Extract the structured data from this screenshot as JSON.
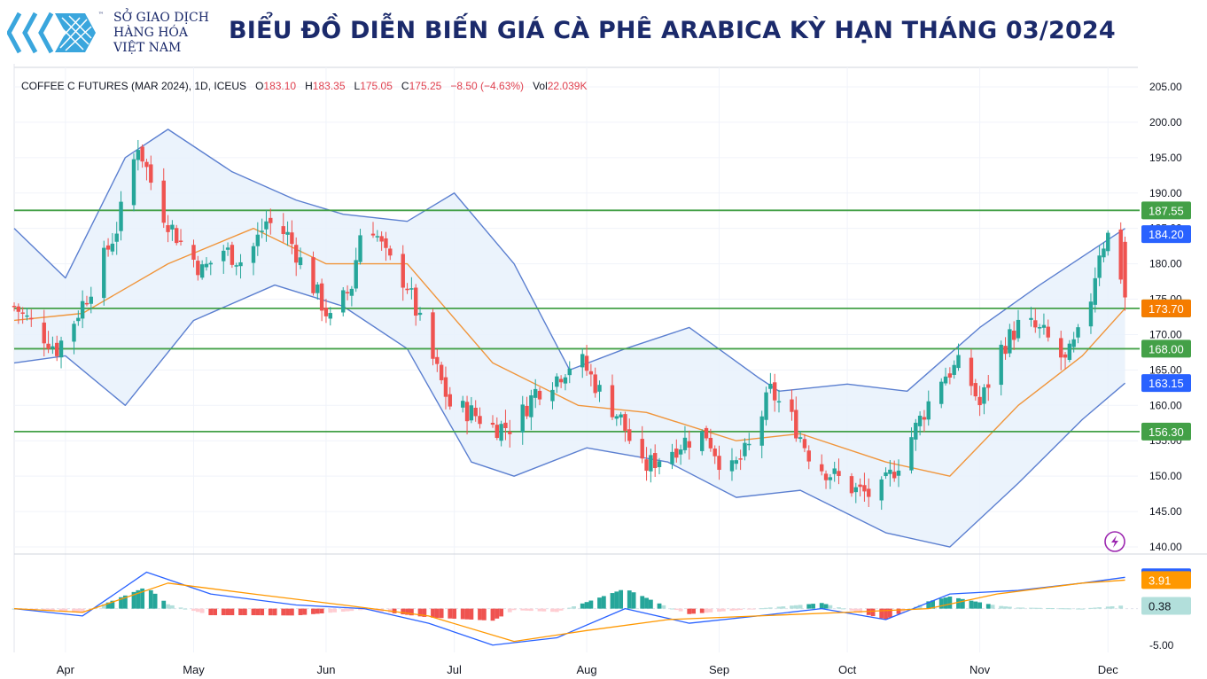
{
  "header": {
    "brand_lines": [
      "SỞ GIAO DỊCH",
      "HÀNG HÓA",
      "VIỆT NAM"
    ],
    "brand_tm": "™",
    "title": "BIỂU ĐỒ DIỄN BIẾN GIÁ CÀ PHÊ ARABICA KỲ HẠN THÁNG 03/2024"
  },
  "legend": {
    "symbol": "COFFEE C FUTURES (MAR 2024), 1D, ICEUS",
    "o_label": "O",
    "o_value": "183.10",
    "h_label": "H",
    "h_value": "183.35",
    "l_label": "L",
    "l_value": "175.05",
    "c_label": "C",
    "c_value": "175.25",
    "change": "−8.50 (−4.63%)",
    "vol_label": "Vol",
    "vol_value": "22.039K"
  },
  "colors": {
    "up": "#26a69a",
    "down": "#ef5350",
    "band_line": "#5b7fd0",
    "band_fill": "#e8f1fb",
    "ma": "#f0953b",
    "level": "#43a047",
    "macd": "#2962ff",
    "signal": "#ff9800"
  },
  "chart_data": [
    {
      "type": "candlestick",
      "name": "COFFEE C FUTURES (MAR 2024), 1D, ICEUS",
      "x_labels": [
        "Apr",
        "May",
        "Jun",
        "Jul",
        "Aug",
        "Sep",
        "Oct",
        "Nov",
        "Dec"
      ],
      "y_ticks": [
        "140.00",
        "145.00",
        "150.00",
        "155.00",
        "160.00",
        "165.00",
        "170.00",
        "175.00",
        "180.00",
        "185.00",
        "190.00",
        "195.00",
        "200.00",
        "205.00"
      ],
      "ylim": [
        139,
        207
      ],
      "last_ohlc": {
        "open": 183.1,
        "high": 183.35,
        "low": 175.05,
        "close": 175.25
      },
      "close_path": [
        {
          "d": "2023-03-20",
          "c": 174
        },
        {
          "d": "2023-03-25",
          "c": 171
        },
        {
          "d": "2023-03-30",
          "c": 168
        },
        {
          "d": "2023-04-03",
          "c": 172
        },
        {
          "d": "2023-04-08",
          "c": 178
        },
        {
          "d": "2023-04-13",
          "c": 185
        },
        {
          "d": "2023-04-18",
          "c": 197
        },
        {
          "d": "2023-04-23",
          "c": 188
        },
        {
          "d": "2023-04-28",
          "c": 183
        },
        {
          "d": "2023-05-03",
          "c": 179
        },
        {
          "d": "2023-05-08",
          "c": 182
        },
        {
          "d": "2023-05-13",
          "c": 180
        },
        {
          "d": "2023-05-18",
          "c": 186
        },
        {
          "d": "2023-05-23",
          "c": 184
        },
        {
          "d": "2023-05-28",
          "c": 178
        },
        {
          "d": "2023-06-02",
          "c": 172
        },
        {
          "d": "2023-06-07",
          "c": 177
        },
        {
          "d": "2023-06-10",
          "c": 188
        },
        {
          "d": "2023-06-15",
          "c": 181
        },
        {
          "d": "2023-06-20",
          "c": 177
        },
        {
          "d": "2023-06-25",
          "c": 168
        },
        {
          "d": "2023-06-30",
          "c": 160
        },
        {
          "d": "2023-07-05",
          "c": 159
        },
        {
          "d": "2023-07-10",
          "c": 157
        },
        {
          "d": "2023-07-15",
          "c": 157
        },
        {
          "d": "2023-07-20",
          "c": 162
        },
        {
          "d": "2023-07-25",
          "c": 164
        },
        {
          "d": "2023-07-30",
          "c": 167
        },
        {
          "d": "2023-08-04",
          "c": 162
        },
        {
          "d": "2023-08-09",
          "c": 158
        },
        {
          "d": "2023-08-14",
          "c": 151
        },
        {
          "d": "2023-08-19",
          "c": 153
        },
        {
          "d": "2023-08-24",
          "c": 155
        },
        {
          "d": "2023-08-29",
          "c": 156
        },
        {
          "d": "2023-09-03",
          "c": 150
        },
        {
          "d": "2023-09-08",
          "c": 154
        },
        {
          "d": "2023-09-13",
          "c": 162
        },
        {
          "d": "2023-09-18",
          "c": 158
        },
        {
          "d": "2023-09-23",
          "c": 152
        },
        {
          "d": "2023-09-28",
          "c": 150
        },
        {
          "d": "2023-10-03",
          "c": 148
        },
        {
          "d": "2023-10-08",
          "c": 147
        },
        {
          "d": "2023-10-13",
          "c": 152
        },
        {
          "d": "2023-10-18",
          "c": 158
        },
        {
          "d": "2023-10-23",
          "c": 164
        },
        {
          "d": "2023-10-28",
          "c": 166
        },
        {
          "d": "2023-11-01",
          "c": 160
        },
        {
          "d": "2023-11-06",
          "c": 168
        },
        {
          "d": "2023-11-11",
          "c": 172
        },
        {
          "d": "2023-11-16",
          "c": 170
        },
        {
          "d": "2023-11-21",
          "c": 166
        },
        {
          "d": "2023-11-26",
          "c": 172
        },
        {
          "d": "2023-11-29",
          "c": 182
        },
        {
          "d": "2023-12-02",
          "c": 185
        },
        {
          "d": "2023-12-05",
          "c": 175.25
        }
      ],
      "horizontal_levels": [
        {
          "value": 187.55,
          "label": "187.55"
        },
        {
          "value": 173.7,
          "label": "173.70"
        },
        {
          "value": 168.0,
          "label": "168.00"
        },
        {
          "value": 156.3,
          "label": "156.30"
        }
      ],
      "price_tags": [
        {
          "value": 184.2,
          "label": "184.20",
          "color": "#2962ff"
        },
        {
          "value": 173.7,
          "label": "173.70",
          "color": "#f57c00"
        },
        {
          "value": 163.15,
          "label": "163.15",
          "color": "#2962ff"
        }
      ],
      "bollinger_upper": [
        {
          "d": "2023-03-20",
          "v": 185
        },
        {
          "d": "2023-04-01",
          "v": 178
        },
        {
          "d": "2023-04-15",
          "v": 195
        },
        {
          "d": "2023-04-25",
          "v": 199
        },
        {
          "d": "2023-05-10",
          "v": 193
        },
        {
          "d": "2023-05-25",
          "v": 189
        },
        {
          "d": "2023-06-05",
          "v": 187
        },
        {
          "d": "2023-06-20",
          "v": 186
        },
        {
          "d": "2023-07-01",
          "v": 190
        },
        {
          "d": "2023-07-15",
          "v": 180
        },
        {
          "d": "2023-07-28",
          "v": 165
        },
        {
          "d": "2023-08-10",
          "v": 168
        },
        {
          "d": "2023-08-25",
          "v": 171
        },
        {
          "d": "2023-09-10",
          "v": 164
        },
        {
          "d": "2023-09-15",
          "v": 162
        },
        {
          "d": "2023-10-01",
          "v": 163
        },
        {
          "d": "2023-10-15",
          "v": 162
        },
        {
          "d": "2023-11-01",
          "v": 171
        },
        {
          "d": "2023-11-15",
          "v": 177
        },
        {
          "d": "2023-12-05",
          "v": 185
        }
      ],
      "bollinger_lower": [
        {
          "d": "2023-03-20",
          "v": 166
        },
        {
          "d": "2023-04-01",
          "v": 167
        },
        {
          "d": "2023-04-15",
          "v": 160
        },
        {
          "d": "2023-05-01",
          "v": 172
        },
        {
          "d": "2023-05-20",
          "v": 177
        },
        {
          "d": "2023-06-05",
          "v": 174
        },
        {
          "d": "2023-06-20",
          "v": 168
        },
        {
          "d": "2023-07-05",
          "v": 152
        },
        {
          "d": "2023-07-15",
          "v": 150
        },
        {
          "d": "2023-08-01",
          "v": 154
        },
        {
          "d": "2023-08-20",
          "v": 152
        },
        {
          "d": "2023-09-05",
          "v": 147
        },
        {
          "d": "2023-09-20",
          "v": 148
        },
        {
          "d": "2023-10-10",
          "v": 142
        },
        {
          "d": "2023-10-25",
          "v": 140
        },
        {
          "d": "2023-11-10",
          "v": 149
        },
        {
          "d": "2023-11-25",
          "v": 158
        },
        {
          "d": "2023-12-05",
          "v": 163.15
        }
      ],
      "moving_average": [
        {
          "d": "2023-03-20",
          "v": 172
        },
        {
          "d": "2023-04-05",
          "v": 173
        },
        {
          "d": "2023-04-25",
          "v": 180
        },
        {
          "d": "2023-05-15",
          "v": 185
        },
        {
          "d": "2023-06-01",
          "v": 180
        },
        {
          "d": "2023-06-20",
          "v": 180
        },
        {
          "d": "2023-07-10",
          "v": 166
        },
        {
          "d": "2023-07-30",
          "v": 160
        },
        {
          "d": "2023-08-15",
          "v": 159
        },
        {
          "d": "2023-09-05",
          "v": 155
        },
        {
          "d": "2023-09-20",
          "v": 156
        },
        {
          "d": "2023-10-10",
          "v": 152
        },
        {
          "d": "2023-10-25",
          "v": 150
        },
        {
          "d": "2023-11-10",
          "v": 160
        },
        {
          "d": "2023-11-25",
          "v": 167
        },
        {
          "d": "2023-12-05",
          "v": 173.7
        }
      ]
    },
    {
      "type": "macd",
      "y_ticks": [
        "-5.00"
      ],
      "ylim": [
        -6,
        7
      ],
      "value_tags": [
        {
          "value": 4.29,
          "label": "4.29",
          "color": "#2962ff"
        },
        {
          "value": 3.91,
          "label": "3.91",
          "color": "#ff9800"
        },
        {
          "value": 0.38,
          "label": "0.38",
          "color": "#b2dfdb"
        }
      ],
      "macd_line": [
        {
          "d": "2023-03-20",
          "v": 0
        },
        {
          "d": "2023-04-05",
          "v": -1
        },
        {
          "d": "2023-04-20",
          "v": 5
        },
        {
          "d": "2023-05-05",
          "v": 2
        },
        {
          "d": "2023-05-25",
          "v": 0.5
        },
        {
          "d": "2023-06-10",
          "v": 0
        },
        {
          "d": "2023-06-25",
          "v": -2
        },
        {
          "d": "2023-07-10",
          "v": -5
        },
        {
          "d": "2023-07-25",
          "v": -4
        },
        {
          "d": "2023-08-10",
          "v": 0
        },
        {
          "d": "2023-08-25",
          "v": -2
        },
        {
          "d": "2023-09-10",
          "v": -1
        },
        {
          "d": "2023-09-25",
          "v": 0
        },
        {
          "d": "2023-10-10",
          "v": -1.5
        },
        {
          "d": "2023-10-25",
          "v": 2
        },
        {
          "d": "2023-11-10",
          "v": 2.5
        },
        {
          "d": "2023-11-25",
          "v": 3.5
        },
        {
          "d": "2023-12-05",
          "v": 4.29
        }
      ],
      "signal_line": [
        {
          "d": "2023-03-20",
          "v": 0
        },
        {
          "d": "2023-04-05",
          "v": -0.5
        },
        {
          "d": "2023-04-25",
          "v": 3.5
        },
        {
          "d": "2023-05-15",
          "v": 2
        },
        {
          "d": "2023-06-05",
          "v": 0.5
        },
        {
          "d": "2023-06-25",
          "v": -1
        },
        {
          "d": "2023-07-15",
          "v": -4.5
        },
        {
          "d": "2023-08-01",
          "v": -3
        },
        {
          "d": "2023-08-20",
          "v": -1.5
        },
        {
          "d": "2023-09-10",
          "v": -1
        },
        {
          "d": "2023-10-01",
          "v": -0.5
        },
        {
          "d": "2023-10-20",
          "v": 0
        },
        {
          "d": "2023-11-05",
          "v": 2
        },
        {
          "d": "2023-11-25",
          "v": 3.5
        },
        {
          "d": "2023-12-05",
          "v": 3.91
        }
      ]
    }
  ]
}
